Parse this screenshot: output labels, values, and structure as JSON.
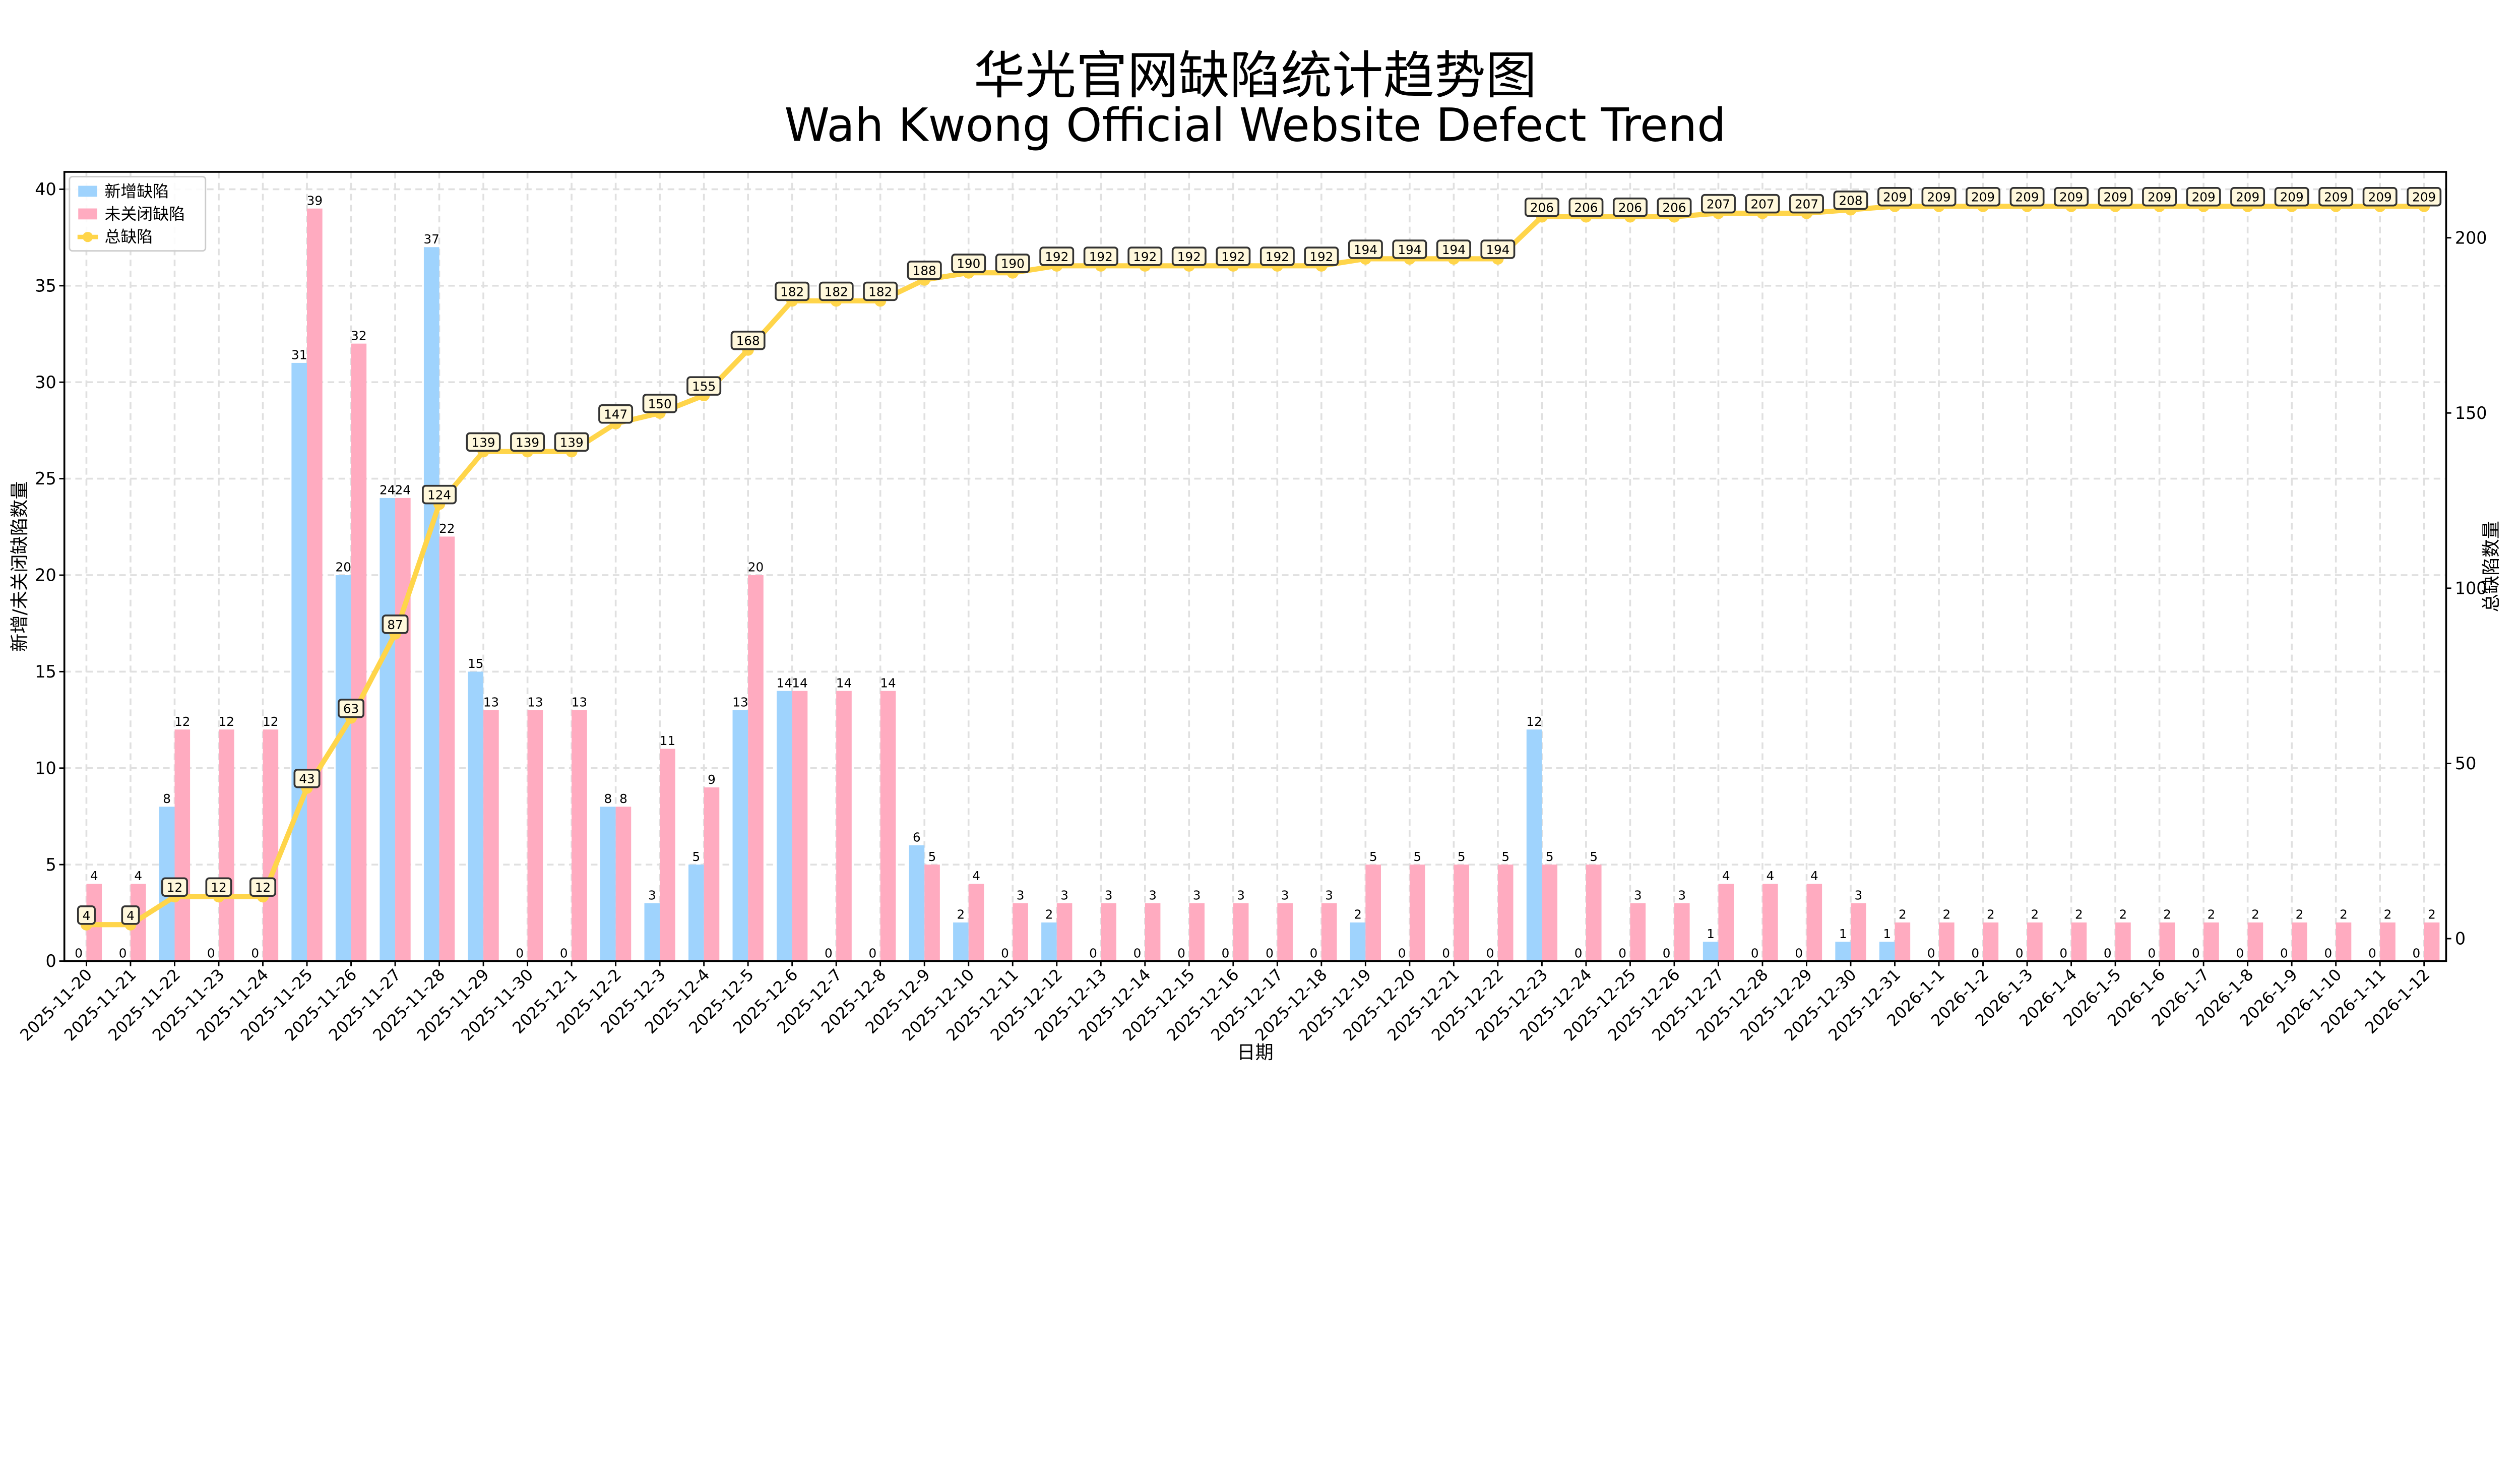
{
  "chart_data": {
    "type": "bar",
    "title": "华光官网缺陷统计趋势图",
    "subtitle": "Wah Kwong Official Website Defect Trend",
    "xlabel": "日期",
    "ylabel": "新增/未关闭缺陷数量",
    "ylabel_right": "总缺陷数量",
    "ylim": [
      0,
      40.9
    ],
    "ylim_right": [
      -6.4,
      218.8
    ],
    "yticks": [
      0,
      5,
      10,
      15,
      20,
      25,
      30,
      35,
      40
    ],
    "yticks_right": [
      0,
      50,
      100,
      150,
      200
    ],
    "grid": true,
    "legend_position": "top-left",
    "colors": {
      "new": "#9fd3fd",
      "open": "#ffabc0",
      "total": "#ffd54a",
      "label_box": "#fff8dc"
    },
    "categories": [
      "2025-11-20",
      "2025-11-21",
      "2025-11-22",
      "2025-11-23",
      "2025-11-24",
      "2025-11-25",
      "2025-11-26",
      "2025-11-27",
      "2025-11-28",
      "2025-11-29",
      "2025-11-30",
      "2025-12-1",
      "2025-12-2",
      "2025-12-3",
      "2025-12-4",
      "2025-12-5",
      "2025-12-6",
      "2025-12-7",
      "2025-12-8",
      "2025-12-9",
      "2025-12-10",
      "2025-12-11",
      "2025-12-12",
      "2025-12-13",
      "2025-12-14",
      "2025-12-15",
      "2025-12-16",
      "2025-12-17",
      "2025-12-18",
      "2025-12-19",
      "2025-12-20",
      "2025-12-21",
      "2025-12-22",
      "2025-12-23",
      "2025-12-24",
      "2025-12-25",
      "2025-12-26",
      "2025-12-27",
      "2025-12-28",
      "2025-12-29",
      "2025-12-30",
      "2025-12-31",
      "2026-1-1",
      "2026-1-2",
      "2026-1-3",
      "2026-1-4",
      "2026-1-5",
      "2026-1-6",
      "2026-1-7",
      "2026-1-8",
      "2026-1-9",
      "2026-1-10",
      "2026-1-11",
      "2026-1-12"
    ],
    "series": [
      {
        "name": "新增缺陷",
        "type": "bar",
        "axis": "left",
        "values": [
          0,
          0,
          8,
          0,
          0,
          31,
          20,
          24,
          37,
          15,
          0,
          0,
          8,
          3,
          5,
          13,
          14,
          0,
          0,
          6,
          2,
          0,
          2,
          0,
          0,
          0,
          0,
          0,
          0,
          2,
          0,
          0,
          0,
          12,
          0,
          0,
          0,
          1,
          0,
          0,
          1,
          1,
          0,
          0,
          0,
          0,
          0,
          0,
          0,
          0,
          0,
          0,
          0,
          0
        ]
      },
      {
        "name": "未关闭缺陷",
        "type": "bar",
        "axis": "left",
        "values": [
          4,
          4,
          12,
          12,
          12,
          39,
          32,
          24,
          22,
          13,
          13,
          13,
          8,
          11,
          9,
          20,
          14,
          14,
          14,
          5,
          4,
          3,
          3,
          3,
          3,
          3,
          3,
          3,
          3,
          5,
          5,
          5,
          5,
          5,
          5,
          3,
          3,
          4,
          4,
          4,
          3,
          2,
          2,
          2,
          2,
          2,
          2,
          2,
          2,
          2,
          2,
          2,
          2,
          2
        ]
      },
      {
        "name": "总缺陷",
        "type": "line",
        "axis": "right",
        "values": [
          4,
          4,
          12,
          12,
          12,
          43,
          63,
          87,
          124,
          139,
          139,
          139,
          147,
          150,
          155,
          168,
          182,
          182,
          182,
          188,
          190,
          190,
          192,
          192,
          192,
          192,
          192,
          192,
          192,
          194,
          194,
          194,
          194,
          206,
          206,
          206,
          206,
          207,
          207,
          207,
          208,
          209,
          209,
          209,
          209,
          209,
          209,
          209,
          209,
          209,
          209,
          209,
          209,
          209
        ]
      }
    ]
  }
}
